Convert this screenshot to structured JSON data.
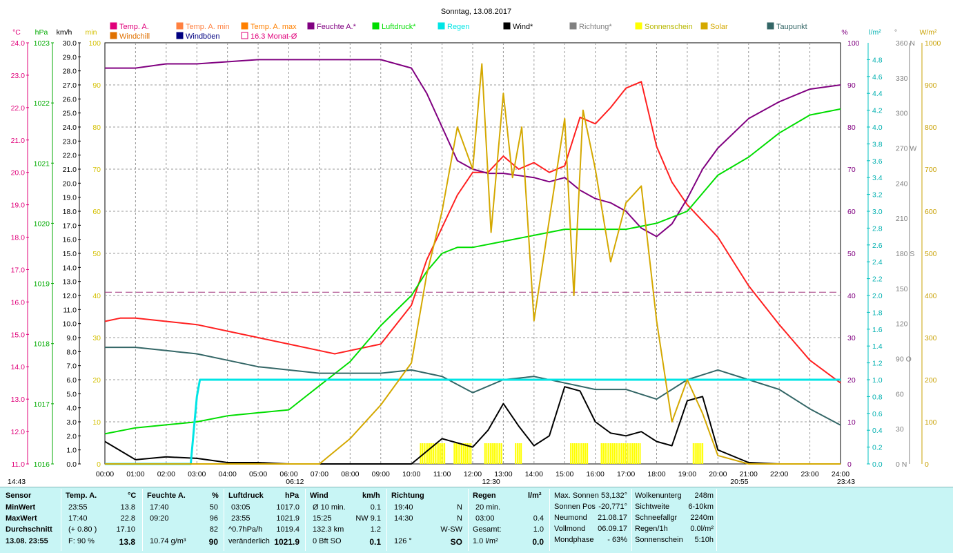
{
  "title": "Sonntag, 13.08.2017",
  "legend": [
    {
      "label": "Temp. A.",
      "color": "#e0007a"
    },
    {
      "label": "Temp. A. min",
      "color": "#ff8040"
    },
    {
      "label": "Temp. A. max",
      "color": "#ff8000"
    },
    {
      "label": "Feuchte A.*",
      "color": "#800080"
    },
    {
      "label": "Luftdruck*",
      "color": "#00dd00"
    },
    {
      "label": "Regen",
      "color": "#00e5e5"
    },
    {
      "label": "Wind*",
      "color": "#000000"
    },
    {
      "label": "Richtung*",
      "color": "#808080"
    },
    {
      "label": "Sonnenschein",
      "color": "#ffff00"
    },
    {
      "label": "Solar",
      "color": "#d4a800"
    },
    {
      "label": "Taupunkt",
      "color": "#336666"
    },
    {
      "label": "Windchill",
      "color": "#e07000"
    },
    {
      "label": "Windböen",
      "color": "#000080"
    },
    {
      "label": "16.3 Monat-Ø",
      "color": "#e0007a"
    }
  ],
  "units": {
    "temp": "°C",
    "press": "hPa",
    "wind": "km/h",
    "min": "min",
    "pct": "%",
    "rain": "l/m²",
    "deg": "°",
    "solar": "W/m²"
  },
  "axes": {
    "temp": [
      "24.0",
      "23.0",
      "22.0",
      "21.0",
      "20.0",
      "19.0",
      "18.0",
      "17.0",
      "16.0",
      "15.0",
      "14.0",
      "13.0",
      "12.0",
      "11.0"
    ],
    "press": [
      "1023",
      "1022",
      "1021",
      "1020",
      "1019",
      "1018",
      "1017",
      "1016"
    ],
    "wind": [
      "30.0",
      "29.0",
      "28.0",
      "27.0",
      "26.0",
      "25.0",
      "24.0",
      "23.0",
      "22.0",
      "21.0",
      "20.0",
      "19.0",
      "18.0",
      "17.0",
      "16.0",
      "15.0",
      "14.0",
      "13.0",
      "12.0",
      "11.0",
      "10.0",
      "9.0",
      "8.0",
      "7.0",
      "6.0",
      "5.0",
      "4.0",
      "3.0",
      "2.0",
      "1.0",
      "0.0"
    ],
    "minutes": [
      "100",
      "90",
      "80",
      "70",
      "60",
      "50",
      "40",
      "30",
      "20",
      "10",
      "0"
    ],
    "pct": [
      "100",
      "90",
      "80",
      "70",
      "60",
      "50",
      "40",
      "30",
      "20",
      "10",
      "0"
    ],
    "rain": [
      "4.8",
      "4.6",
      "4.4",
      "4.2",
      "4.0",
      "3.8",
      "3.6",
      "3.4",
      "3.2",
      "3.0",
      "2.8",
      "2.6",
      "2.4",
      "2.2",
      "2.0",
      "1.8",
      "1.6",
      "1.4",
      "1.2",
      "1.0",
      "0.8",
      "0.6",
      "0.4",
      "0.2",
      "0.0"
    ],
    "dir": [
      "360 N",
      "330",
      "300",
      "270 W",
      "240",
      "210",
      "180 S",
      "150",
      "120",
      "90  O",
      "60",
      "30",
      "0   N"
    ],
    "solar": [
      "1000",
      "900",
      "800",
      "700",
      "600",
      "500",
      "400",
      "300",
      "200",
      "100",
      "0"
    ],
    "time": [
      "00:00",
      "01:00",
      "02:00",
      "03:00",
      "04:00",
      "05:00",
      "06:00",
      "07:00",
      "08:00",
      "09:00",
      "10:00",
      "11:00",
      "12:00",
      "13:00",
      "14:00",
      "15:00",
      "16:00",
      "17:00",
      "18:00",
      "19:00",
      "20:00",
      "21:00",
      "22:00",
      "23:00",
      "24:00"
    ]
  },
  "markers": {
    "start": "14:43",
    "sunrise": "06:12",
    "noon": "12:30",
    "sunset": "20:55",
    "end": "23:43"
  },
  "chart_data": {
    "type": "line",
    "x_unit": "hour",
    "xlim": [
      0,
      24
    ],
    "temp_ylim": [
      11,
      24
    ],
    "pct_ylim": [
      0,
      100
    ],
    "month_avg_temp": 16.3,
    "series": [
      {
        "name": "Temp. A.",
        "axis": "temp",
        "color": "#ff2020",
        "x": [
          0,
          0.5,
          1,
          2,
          3,
          4,
          5,
          6,
          7,
          7.5,
          8,
          9,
          10,
          10.5,
          11,
          11.5,
          12,
          12.5,
          13,
          13.5,
          14,
          14.5,
          15,
          15.5,
          16,
          16.5,
          17,
          17.5,
          18,
          18.5,
          19,
          20,
          21,
          22,
          23,
          24
        ],
        "y": [
          15.4,
          15.5,
          15.5,
          15.4,
          15.3,
          15.1,
          14.9,
          14.7,
          14.5,
          14.4,
          14.5,
          14.7,
          15.9,
          17.3,
          18.3,
          19.3,
          20.0,
          20.0,
          20.5,
          20.1,
          20.3,
          20.0,
          20.2,
          21.7,
          21.5,
          22.0,
          22.6,
          22.8,
          20.8,
          19.7,
          19.0,
          18.0,
          16.5,
          15.3,
          14.2,
          13.5
        ]
      },
      {
        "name": "Feuchte A.*",
        "axis": "pct",
        "color": "#800080",
        "x": [
          0,
          1,
          2,
          3,
          5,
          6,
          7,
          8,
          9,
          10,
          10.5,
          11,
          11.5,
          12,
          12.5,
          13,
          14,
          14.5,
          15,
          15.5,
          16,
          16.5,
          17,
          17.5,
          18,
          18.5,
          19,
          19.5,
          20,
          21,
          22,
          23,
          24
        ],
        "y": [
          94,
          94,
          95,
          95,
          96,
          96,
          96,
          96,
          96,
          94,
          88,
          80,
          72,
          70,
          69,
          69,
          68,
          67,
          68,
          65,
          63,
          62,
          60,
          56,
          54,
          57,
          63,
          70,
          75,
          82,
          86,
          89,
          90
        ]
      },
      {
        "name": "Luftdruck*",
        "axis": "press",
        "color": "#00dd00",
        "x": [
          0,
          1,
          2,
          3,
          4,
          5,
          6,
          6.5,
          7,
          8,
          9,
          10,
          10.5,
          11,
          11.5,
          12,
          13,
          14,
          15,
          16,
          17,
          18,
          19,
          19.5,
          20,
          21,
          22,
          23,
          24
        ],
        "y": [
          1016.5,
          1016.6,
          1016.65,
          1016.7,
          1016.8,
          1016.85,
          1016.9,
          1017.1,
          1017.3,
          1017.7,
          1018.3,
          1018.8,
          1019.2,
          1019.5,
          1019.6,
          1019.6,
          1019.7,
          1019.8,
          1019.9,
          1019.9,
          1019.9,
          1020.0,
          1020.2,
          1020.5,
          1020.8,
          1021.1,
          1021.5,
          1021.8,
          1021.9
        ]
      },
      {
        "name": "Taupunkt",
        "axis": "temp",
        "color": "#336666",
        "x": [
          0,
          1,
          2,
          3,
          4,
          5,
          6,
          7,
          8,
          9,
          10,
          11,
          12,
          13,
          14,
          15,
          16,
          17,
          18,
          19,
          20,
          21,
          22,
          23,
          24
        ],
        "y": [
          14.6,
          14.6,
          14.5,
          14.4,
          14.2,
          14.0,
          13.9,
          13.8,
          13.8,
          13.8,
          13.9,
          13.7,
          13.2,
          13.6,
          13.7,
          13.5,
          13.3,
          13.3,
          13.0,
          13.6,
          13.9,
          13.6,
          13.3,
          12.7,
          12.2
        ]
      },
      {
        "name": "Wind*",
        "axis": "wind",
        "color": "#000000",
        "x": [
          0,
          1,
          2,
          3,
          4,
          5,
          6,
          7,
          8,
          9,
          10,
          11,
          12,
          12.5,
          13,
          13.5,
          14,
          14.5,
          15,
          15.5,
          16,
          16.5,
          17,
          17.5,
          18,
          18.5,
          19,
          19.5,
          20,
          21,
          22,
          23,
          24
        ],
        "y": [
          1.6,
          0.3,
          0.5,
          0.4,
          0.1,
          0.1,
          0,
          0,
          0,
          0,
          0,
          1.8,
          1.2,
          2.4,
          4.3,
          2.7,
          1.3,
          2.0,
          5.5,
          5.2,
          3.0,
          2.2,
          2.0,
          2.3,
          1.6,
          1.3,
          4.5,
          4.8,
          1.0,
          0.1,
          0,
          0,
          0
        ]
      },
      {
        "name": "Regen",
        "axis": "rain",
        "color": "#00e5e5",
        "x": [
          0,
          2.8,
          2.9,
          3.0,
          3.1,
          24
        ],
        "y": [
          0,
          0,
          0.4,
          0.8,
          1.0,
          1.0
        ]
      },
      {
        "name": "Solar",
        "axis": "solar",
        "color": "#d4a800",
        "x": [
          0,
          7,
          8,
          9,
          10,
          10.5,
          11,
          11.5,
          12,
          12.3,
          12.6,
          13,
          13.3,
          13.6,
          14,
          14.5,
          15,
          15.3,
          15.6,
          16,
          16.5,
          17,
          17.5,
          18,
          18.5,
          19,
          19.5,
          20,
          21,
          24
        ],
        "y": [
          0,
          0,
          60,
          140,
          240,
          450,
          600,
          800,
          700,
          950,
          550,
          880,
          680,
          800,
          340,
          580,
          820,
          400,
          840,
          700,
          480,
          620,
          660,
          340,
          100,
          200,
          120,
          20,
          0,
          0
        ]
      }
    ]
  },
  "stats": {
    "sensor": {
      "head": "Sensor",
      "rows": [
        "MinWert",
        "MaxWert",
        "Durchschnitt"
      ],
      "foot": "13.08. 23:55"
    },
    "temp": {
      "head": "Temp. A.",
      "unit": "°C",
      "rows": [
        [
          "23:55",
          "13.8"
        ],
        [
          "17:40",
          "22.8"
        ],
        [
          "(+ 0.80 )",
          "17.10"
        ]
      ],
      "foot": [
        "F: 90 %",
        "13.8"
      ]
    },
    "feuchte": {
      "head": "Feuchte A.",
      "unit": "%",
      "rows": [
        [
          "17:40",
          "50"
        ],
        [
          "09:20",
          "96"
        ],
        [
          "",
          "82"
        ]
      ],
      "foot": [
        "10.74 g/m³",
        "90"
      ]
    },
    "druck": {
      "head": "Luftdruck",
      "unit": "hPa",
      "rows": [
        [
          "03:05",
          "1017.0"
        ],
        [
          "23:55",
          "1021.9"
        ],
        [
          "^0.7hPa/h",
          "1019.4"
        ]
      ],
      "foot": [
        "veränderlich",
        "1021.9"
      ]
    },
    "wind": {
      "head": "Wind",
      "unit": "km/h",
      "rows": [
        [
          "Ø 10 min.",
          "0.1"
        ],
        [
          "15:25",
          "NW 9.1"
        ],
        [
          "132.3 km",
          "1.2"
        ]
      ],
      "foot": [
        "0 Bft SO",
        "0.1"
      ]
    },
    "richtung": {
      "head": "Richtung",
      "rows": [
        [
          "19:40",
          "N"
        ],
        [
          "14:30",
          "N"
        ],
        [
          "",
          "W-SW"
        ]
      ],
      "foot": [
        "126 °",
        "SO"
      ]
    },
    "regen": {
      "head": "Regen",
      "unit": "l/m²",
      "rows": [
        [
          "20 min.",
          ""
        ],
        [
          "03:00",
          "0.4"
        ],
        [
          "Gesamt:",
          "1.0"
        ]
      ],
      "foot": [
        "1.0 l/m²",
        "0.0"
      ]
    },
    "sonne": {
      "rows": [
        [
          "Max. Sonnen",
          "53,132°"
        ],
        [
          "Sonnen Pos",
          "-20,771°"
        ],
        [
          "Neumond",
          "21.08.17"
        ],
        [
          "Vollmond",
          "06.09.17"
        ],
        [
          "Mondphase",
          "- 63%"
        ]
      ]
    },
    "wolken": {
      "rows": [
        [
          "Wolkenunterg",
          "248m"
        ],
        [
          "Sichtweite",
          "6-10km"
        ],
        [
          "Schneefallgr",
          "2240m"
        ],
        [
          "Regen/1h",
          "0.0l/m²"
        ],
        [
          "Sonnenschein",
          "5:10h"
        ]
      ]
    }
  }
}
